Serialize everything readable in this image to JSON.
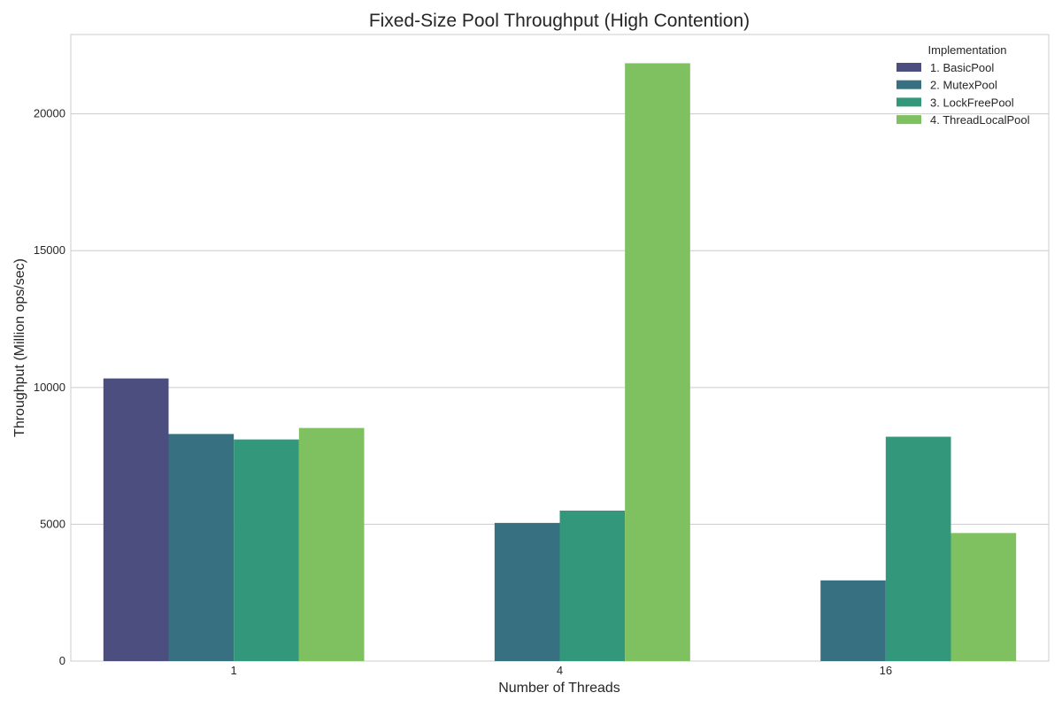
{
  "chart_data": {
    "type": "bar",
    "title": "Fixed-Size Pool Throughput (High Contention)",
    "xlabel": "Number of Threads",
    "ylabel": "Throughput (Million ops/sec)",
    "categories": [
      "1",
      "4",
      "16"
    ],
    "ylim": [
      0,
      22900
    ],
    "yticks": [
      0,
      5000,
      10000,
      15000,
      20000
    ],
    "grid": true,
    "legend": {
      "title": "Implementation",
      "placement": "top-right"
    },
    "series": [
      {
        "name": "1. BasicPool",
        "color": "#4b4e7e",
        "values": [
          10330,
          null,
          null
        ]
      },
      {
        "name": "2. MutexPool",
        "color": "#377181",
        "values": [
          8300,
          5050,
          2950
        ]
      },
      {
        "name": "3. LockFreePool",
        "color": "#33977b",
        "values": [
          8100,
          5500,
          8200
        ]
      },
      {
        "name": "4. ThreadLocalPool",
        "color": "#7fc160",
        "values": [
          8520,
          21850,
          4680
        ]
      }
    ]
  }
}
